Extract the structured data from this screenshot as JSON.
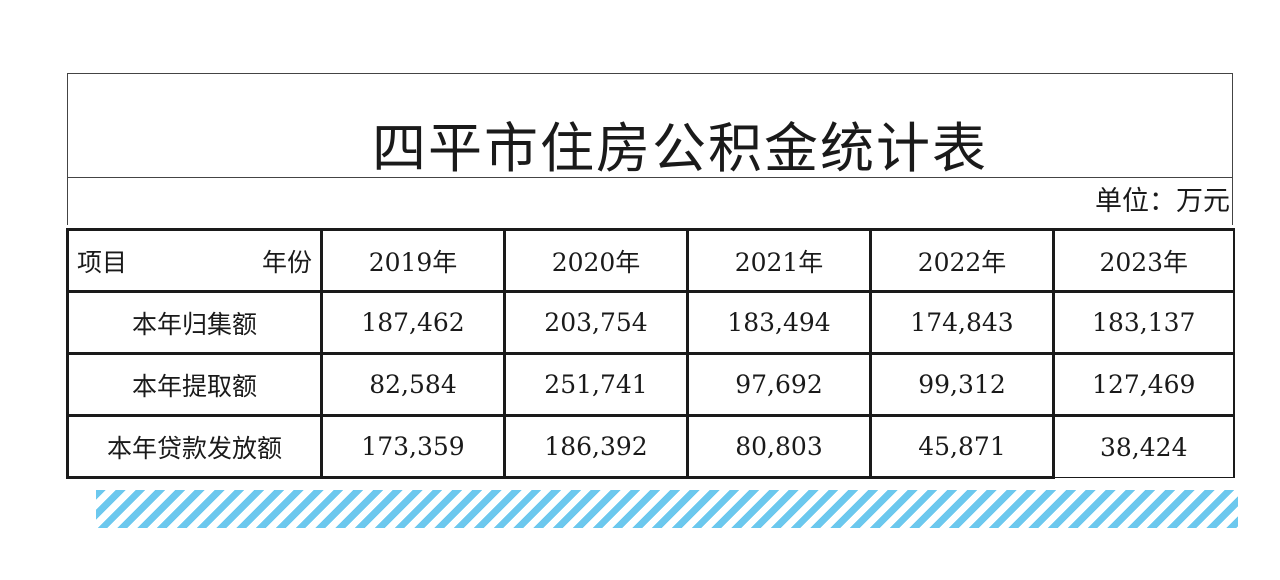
{
  "title": "四平市住房公积金统计表",
  "unit": "单位：万元",
  "table": {
    "corner_item": "项目",
    "corner_year": "年份",
    "years": [
      "2019年",
      "2020年",
      "2021年",
      "2022年",
      "2023年"
    ],
    "rows": [
      {
        "label": "本年归集额",
        "values": [
          "187,462",
          "203,754",
          "183,494",
          "174,843",
          "183,137"
        ]
      },
      {
        "label": "本年提取额",
        "values": [
          "82,584",
          "251,741",
          "97,692",
          "99,312",
          "127,469"
        ]
      },
      {
        "label": "本年贷款发放额",
        "values": [
          "173,359",
          "186,392",
          "80,803",
          "45,871",
          "38,424"
        ]
      }
    ]
  },
  "colors": {
    "stripe": "#6cc8ee",
    "border": "#1a1a1a"
  }
}
